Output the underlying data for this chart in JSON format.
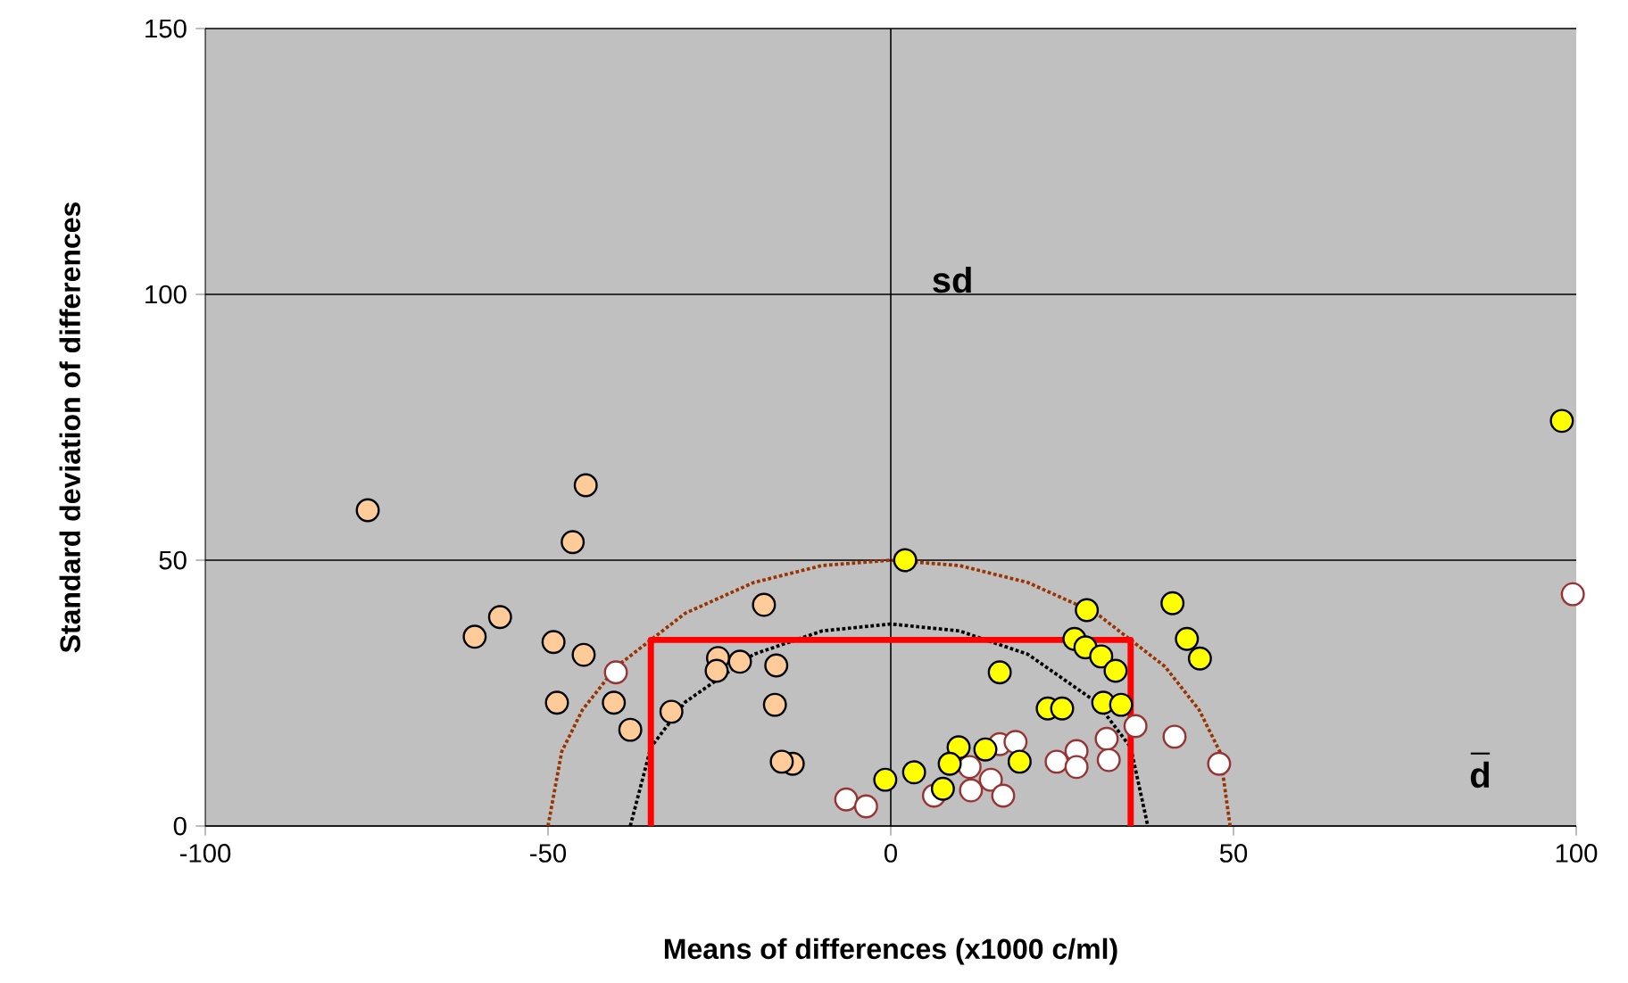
{
  "chart_data": {
    "type": "scatter",
    "xlabel": "Means of differences (x1000 c/ml)",
    "ylabel": "Standard deviation of differences",
    "xlim": [
      -100,
      100
    ],
    "xticks": [
      -100,
      -50,
      0,
      50,
      100
    ],
    "ylim": [
      0,
      150
    ],
    "yticks": [
      0,
      50,
      100,
      150
    ],
    "grid": "y",
    "marker": "circle",
    "ref_lines": [
      {
        "axis": "x",
        "value": 0,
        "color": "#000000"
      }
    ],
    "annotations": [
      "sd",
      "d"
    ],
    "series": [
      {
        "color": "#ffcc99",
        "x": [
          -76.3,
          -44.5,
          -46.4,
          -57,
          -60.7,
          -49.2,
          -44.8,
          -48.7,
          -40.4,
          -38,
          -32,
          -18.5,
          -25.2,
          -25.4,
          -22,
          -16.7,
          -16.9,
          -14.3,
          -15.9
        ],
        "values": [
          59.4,
          64.1,
          53.4,
          39.3,
          35.6,
          34.6,
          32.2,
          23.2,
          23.2,
          18.1,
          21.5,
          41.6,
          31.6,
          29.2,
          30.9,
          30.2,
          22.8,
          11.7,
          12.1
        ]
      },
      {
        "color": "#ffffff",
        "x": [
          -40.1,
          -6.5,
          -3.6,
          6.3,
          11.5,
          11.7,
          14.6,
          16.4,
          15.9,
          18.2,
          24.2,
          27.1,
          27.1,
          31.5,
          31.8,
          35.7,
          41.4,
          47.9,
          99.5
        ],
        "values": [
          28.9,
          5.0,
          3.7,
          5.7,
          11.1,
          6.7,
          8.7,
          5.7,
          15.4,
          15.8,
          12.1,
          14.1,
          11.1,
          16.4,
          12.4,
          18.8,
          16.8,
          11.7,
          43.6
        ]
      },
      {
        "color": "#ffff00",
        "x": [
          2.1,
          97.9,
          -0.8,
          3.4,
          9.9,
          8.6,
          7.6,
          13.8,
          18.8,
          15.9,
          22.9,
          25,
          28.6,
          26.8,
          28.4,
          30.7,
          32.8,
          31,
          33.6,
          41.1,
          43.2,
          45.1
        ],
        "values": [
          50.0,
          76.2,
          8.7,
          10.1,
          14.8,
          11.7,
          7.0,
          14.4,
          12.1,
          28.9,
          22.1,
          22.1,
          40.6,
          35.2,
          33.6,
          31.9,
          29.2,
          23.2,
          22.8,
          41.9,
          35.2,
          31.5
        ]
      },
      {
        "type": "line",
        "color": "#993300",
        "line_style": "dotted",
        "marker": "none",
        "x": [
          -50,
          -48,
          -45,
          -40,
          -30,
          -20,
          -10,
          0,
          10,
          20,
          30,
          40,
          45,
          48,
          49.5
        ],
        "values": [
          0,
          14,
          21.8,
          30,
          40,
          45.8,
          49,
          50,
          49,
          45.8,
          40,
          30,
          21.8,
          14,
          0
        ]
      },
      {
        "type": "line",
        "color": "#000000",
        "line_style": "dotted",
        "marker": "none",
        "x": [
          -38,
          -35,
          -30,
          -20,
          -10,
          0,
          10,
          20,
          30,
          35,
          37.5
        ],
        "values": [
          0,
          14.8,
          23.3,
          32.3,
          36.7,
          38,
          36.7,
          32.3,
          23.3,
          14.8,
          0
        ]
      },
      {
        "type": "line",
        "color": "#ff0000",
        "line_style": "solid",
        "marker": "none",
        "x": [
          -35,
          -35,
          35,
          35
        ],
        "values": [
          0,
          35,
          35,
          0
        ]
      }
    ]
  }
}
